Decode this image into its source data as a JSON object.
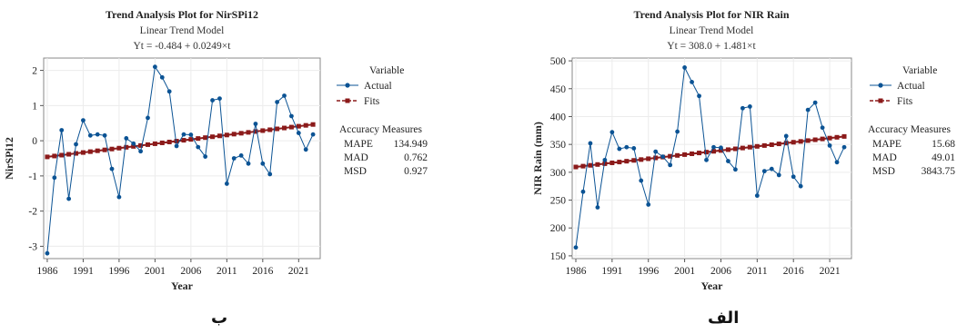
{
  "chart_data": [
    {
      "type": "line",
      "title": "Trend Analysis Plot for NirSPi12",
      "subtitle": "Linear Trend Model",
      "equation": "Yt = -0.484 + 0.0249×t",
      "xlabel": "Year",
      "ylabel": "NirSPi12",
      "xlim": [
        1985.5,
        2024
      ],
      "ylim": [
        -3.35,
        2.35
      ],
      "xticks": [
        "1986",
        "1991",
        "1996",
        "2001",
        "2006",
        "2011",
        "2016",
        "2021"
      ],
      "yticks": [
        "-3",
        "-2",
        "-1",
        "0",
        "1",
        "2"
      ],
      "trend": {
        "intercept": -0.484,
        "slope": 0.0249
      },
      "x": [
        1986,
        1987,
        1988,
        1989,
        1990,
        1991,
        1992,
        1993,
        1994,
        1995,
        1996,
        1997,
        1998,
        1999,
        2000,
        2001,
        2002,
        2003,
        2004,
        2005,
        2006,
        2007,
        2008,
        2009,
        2010,
        2011,
        2012,
        2013,
        2014,
        2015,
        2016,
        2017,
        2018,
        2019,
        2020,
        2021,
        2022,
        2023
      ],
      "series": [
        {
          "name": "Actual",
          "color": "#0b5394",
          "values": [
            -3.2,
            -1.05,
            0.3,
            -1.65,
            -0.1,
            0.58,
            0.15,
            0.18,
            0.15,
            -0.8,
            -1.6,
            0.07,
            -0.08,
            -0.3,
            0.65,
            2.1,
            1.8,
            1.4,
            -0.15,
            0.18,
            0.17,
            -0.18,
            -0.45,
            1.15,
            1.2,
            -1.22,
            -0.5,
            -0.42,
            -0.65,
            0.48,
            -0.65,
            -0.95,
            1.1,
            1.28,
            0.7,
            0.22,
            -0.25,
            0.18
          ]
        },
        {
          "name": "Fits",
          "color": "#8b1a1a"
        }
      ],
      "legend": {
        "title": "Variable",
        "placement": "right"
      },
      "accuracy": {
        "title": "Accuracy Measures",
        "rows": [
          {
            "label": "MAPE",
            "value": "134.949"
          },
          {
            "label": "MAD",
            "value": "0.762"
          },
          {
            "label": "MSD",
            "value": "0.927"
          }
        ]
      },
      "caption": "ب"
    },
    {
      "type": "line",
      "title": "Trend Analysis Plot for NIR Rain",
      "subtitle": "Linear Trend Model",
      "equation": "Yt = 308.0 + 1.481×t",
      "xlabel": "Year",
      "ylabel": "NIR Rain (mm)",
      "xlim": [
        1985.5,
        2024
      ],
      "ylim": [
        145,
        505
      ],
      "xticks": [
        "1986",
        "1991",
        "1996",
        "2001",
        "2006",
        "2011",
        "2016",
        "2021"
      ],
      "yticks": [
        "150",
        "200",
        "250",
        "300",
        "350",
        "400",
        "450",
        "500"
      ],
      "trend": {
        "intercept": 308.0,
        "slope": 1.481
      },
      "x": [
        1986,
        1987,
        1988,
        1989,
        1990,
        1991,
        1992,
        1993,
        1994,
        1995,
        1996,
        1997,
        1998,
        1999,
        2000,
        2001,
        2002,
        2003,
        2004,
        2005,
        2006,
        2007,
        2008,
        2009,
        2010,
        2011,
        2012,
        2013,
        2014,
        2015,
        2016,
        2017,
        2018,
        2019,
        2020,
        2021,
        2022,
        2023
      ],
      "series": [
        {
          "name": "Actual",
          "color": "#0b5394",
          "values": [
            165,
            265,
            352,
            237,
            322,
            372,
            342,
            345,
            343,
            285,
            242,
            337,
            328,
            313,
            373,
            488,
            462,
            437,
            322,
            345,
            344,
            320,
            305,
            415,
            418,
            258,
            302,
            306,
            295,
            365,
            292,
            275,
            412,
            425,
            380,
            348,
            318,
            345
          ]
        },
        {
          "name": "Fits",
          "color": "#8b1a1a"
        }
      ],
      "legend": {
        "title": "Variable",
        "placement": "right"
      },
      "accuracy": {
        "title": "Accuracy Measures",
        "rows": [
          {
            "label": "MAPE",
            "value": "15.68"
          },
          {
            "label": "MAD",
            "value": "49.01"
          },
          {
            "label": "MSD",
            "value": "3843.75"
          }
        ]
      },
      "caption": "الف"
    }
  ]
}
